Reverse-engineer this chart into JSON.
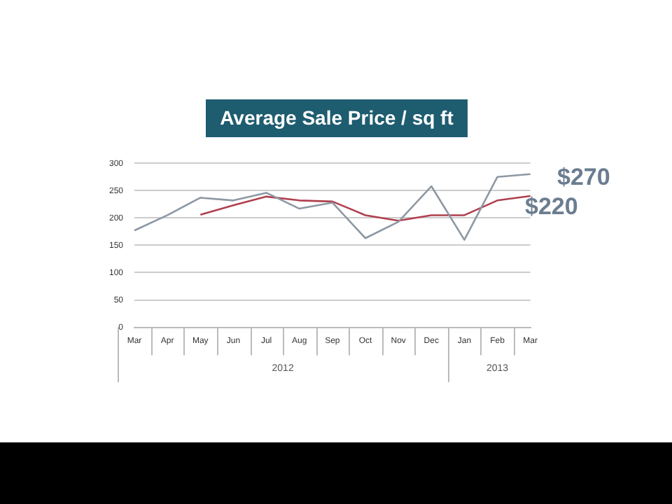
{
  "chart_data": {
    "type": "line",
    "title": "Average Sale Price / sq ft",
    "categories": [
      "Mar",
      "Apr",
      "May",
      "Jun",
      "Jul",
      "Aug",
      "Sep",
      "Oct",
      "Nov",
      "Dec",
      "Jan",
      "Feb",
      "Mar"
    ],
    "series": [
      {
        "color": "#8e98a3",
        "values": [
          177,
          205,
          237,
          232,
          246,
          217,
          228,
          163,
          193,
          258,
          160,
          275,
          280
        ]
      },
      {
        "color": "#b0404e",
        "values": [
          null,
          null,
          206,
          223,
          239,
          232,
          230,
          205,
          195,
          205,
          205,
          232,
          240
        ]
      }
    ],
    "ylim": [
      0,
      300
    ],
    "yticks": [
      0,
      50,
      100,
      150,
      200,
      250,
      300
    ],
    "grid": "y",
    "legend": false,
    "marker": "none",
    "line_style": "solid",
    "annotations": [
      "$270",
      "$220",
      "2012",
      "2013"
    ]
  }
}
